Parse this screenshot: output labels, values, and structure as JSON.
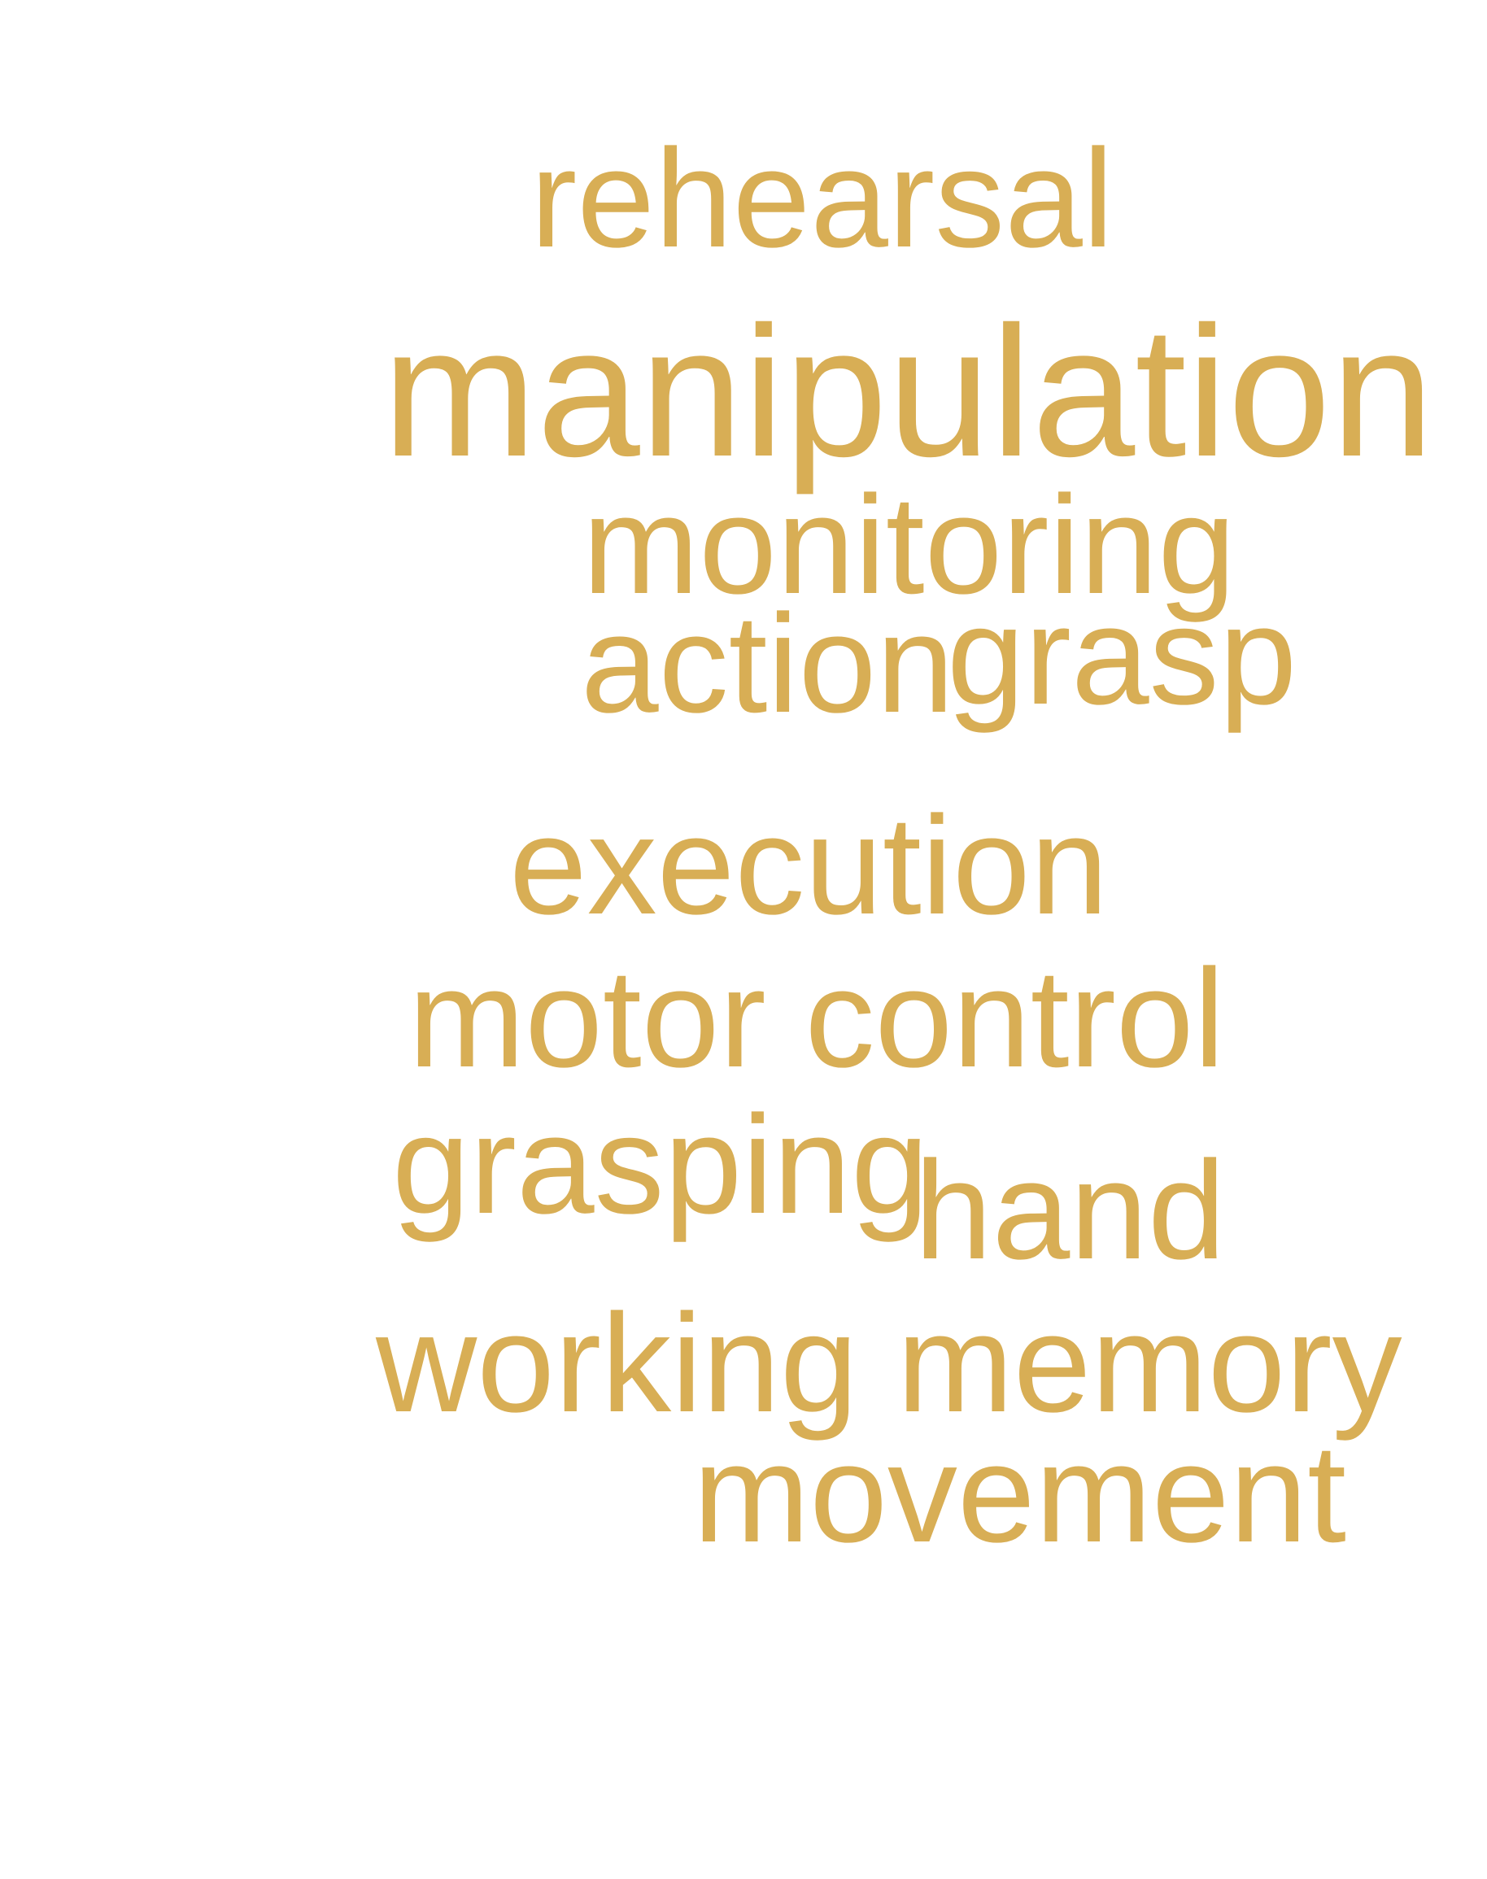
{
  "colors": {
    "word": "#d8ae55",
    "background": "#ffffff"
  },
  "words": {
    "rehearsal": "rehearsal",
    "manipulation": "manipulation",
    "monitoring": "monitoring",
    "action": "action",
    "grasp": "grasp",
    "execution": "execution",
    "motor_control": "motor control",
    "grasping": "grasping",
    "hand": "hand",
    "working_memory": "working memory",
    "movement": "movement"
  }
}
